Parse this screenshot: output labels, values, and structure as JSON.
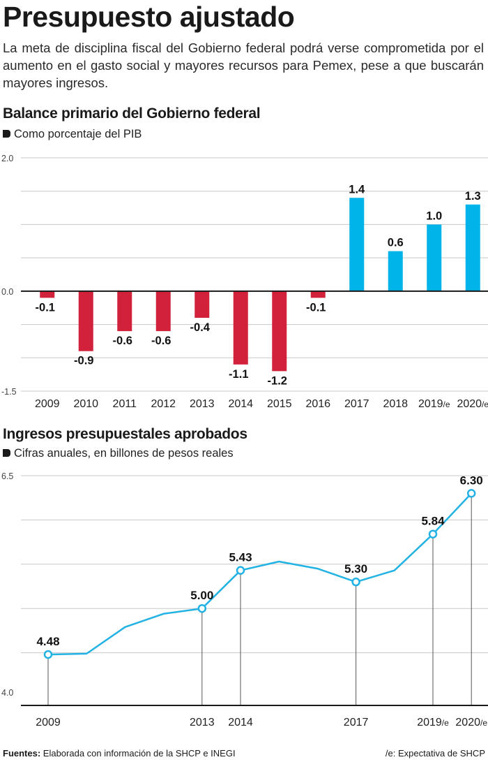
{
  "header": {
    "title": "Presupuesto ajustado",
    "intro": "La meta de disciplina fiscal del Gobierno federal podrá verse comprometida por el aumento en el gasto social y mayores recursos para Pemex, pese a que buscarán mayores ingresos."
  },
  "colors": {
    "negative": "#d1213b",
    "positive": "#00b3e8",
    "line": "#22b2e3",
    "grid": "#c8c8c8",
    "axis": "#1a1a1a"
  },
  "chart1_header": {
    "title": "Balance primario del Gobierno federal",
    "subtitle": "Como porcentaje del PIB"
  },
  "chart2_header": {
    "title": "Ingresos presupuestales aprobados",
    "subtitle": "Cifras anuales, en billones de pesos reales"
  },
  "chart_data": [
    {
      "type": "bar",
      "title": "Balance primario del Gobierno federal",
      "subtitle": "Como porcentaje del PIB",
      "categories": [
        "2009",
        "2010",
        "2011",
        "2012",
        "2013",
        "2014",
        "2015",
        "2016",
        "2017",
        "2018",
        "2019/e",
        "2020/e"
      ],
      "values": [
        -0.1,
        -0.9,
        -0.6,
        -0.6,
        -0.4,
        -1.1,
        -1.2,
        -0.1,
        1.4,
        0.6,
        1.0,
        1.3
      ],
      "value_labels": [
        "-0.1",
        "-0.9",
        "-0.6",
        "-0.6",
        "-0.4",
        "-1.1",
        "-1.2",
        "-0.1",
        "1.4",
        "0.6",
        "1.0",
        "1.3"
      ],
      "ylim": [
        -1.5,
        2.0
      ],
      "ytick_labels": [
        {
          "value": 2.0,
          "label": "2.0"
        },
        {
          "value": 0.0,
          "label": "0.0"
        },
        {
          "value": -1.5,
          "label": "-1.5"
        }
      ],
      "grid": true
    },
    {
      "type": "line",
      "title": "Ingresos presupuestales aprobados",
      "subtitle": "Cifras anuales, en billones de pesos reales",
      "x": [
        2009,
        2010,
        2011,
        2012,
        2013,
        2014,
        2015,
        2016,
        2017,
        2018,
        2019,
        2020
      ],
      "values": [
        4.48,
        4.49,
        4.79,
        4.94,
        5.0,
        5.43,
        5.53,
        5.45,
        5.3,
        5.43,
        5.84,
        6.3
      ],
      "marked_points": [
        {
          "x": 2009,
          "x_label": "2009",
          "label": "4.48"
        },
        {
          "x": 2013,
          "x_label": "2013",
          "label": "5.00"
        },
        {
          "x": 2014,
          "x_label": "2014",
          "label": "5.43"
        },
        {
          "x": 2017,
          "x_label": "2017",
          "label": "5.30"
        },
        {
          "x": 2019,
          "x_label": "2019/e",
          "label": "5.84"
        },
        {
          "x": 2020,
          "x_label": "2020/e",
          "label": "6.30"
        }
      ],
      "ylim": [
        4.0,
        6.5
      ],
      "ytick_labels": [
        {
          "value": 6.5,
          "label": "6.5"
        },
        {
          "value": 4.0,
          "label": "4.0"
        }
      ],
      "grid": true
    }
  ],
  "footer": {
    "sources_label": "Fuentes:",
    "sources_text": " Elaborada con información de la SHCP e INEGI",
    "note": "/e: Expectativa de SHCP"
  }
}
